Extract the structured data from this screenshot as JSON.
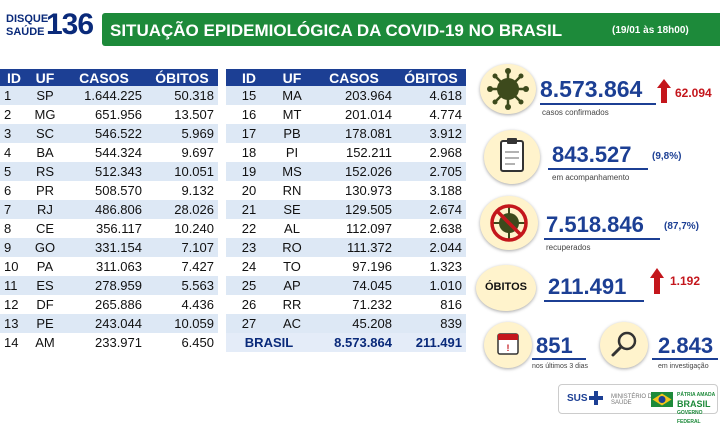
{
  "header": {
    "logo_line1": "DISQUE",
    "logo_line2": "SAÚDE",
    "logo_number": "136",
    "title": "SITUAÇÃO EPIDEMIOLÓGICA DA COVID-19 NO BRASIL",
    "date": "(19/01 às 18h00)"
  },
  "table": {
    "columns": [
      "ID",
      "UF",
      "CASOS",
      "ÓBITOS"
    ],
    "left_rows": [
      {
        "id": "1",
        "uf": "SP",
        "casos": "1.644.225",
        "obitos": "50.318"
      },
      {
        "id": "2",
        "uf": "MG",
        "casos": "651.956",
        "obitos": "13.507"
      },
      {
        "id": "3",
        "uf": "SC",
        "casos": "546.522",
        "obitos": "5.969"
      },
      {
        "id": "4",
        "uf": "BA",
        "casos": "544.324",
        "obitos": "9.697"
      },
      {
        "id": "5",
        "uf": "RS",
        "casos": "512.343",
        "obitos": "10.051"
      },
      {
        "id": "6",
        "uf": "PR",
        "casos": "508.570",
        "obitos": "9.132"
      },
      {
        "id": "7",
        "uf": "RJ",
        "casos": "486.806",
        "obitos": "28.026"
      },
      {
        "id": "8",
        "uf": "CE",
        "casos": "356.117",
        "obitos": "10.240"
      },
      {
        "id": "9",
        "uf": "GO",
        "casos": "331.154",
        "obitos": "7.107"
      },
      {
        "id": "10",
        "uf": "PA",
        "casos": "311.063",
        "obitos": "7.427"
      },
      {
        "id": "11",
        "uf": "ES",
        "casos": "278.959",
        "obitos": "5.563"
      },
      {
        "id": "12",
        "uf": "DF",
        "casos": "265.886",
        "obitos": "4.436"
      },
      {
        "id": "13",
        "uf": "PE",
        "casos": "243.044",
        "obitos": "10.059"
      },
      {
        "id": "14",
        "uf": "AM",
        "casos": "233.971",
        "obitos": "6.450"
      }
    ],
    "right_rows": [
      {
        "id": "15",
        "uf": "MA",
        "casos": "203.964",
        "obitos": "4.618"
      },
      {
        "id": "16",
        "uf": "MT",
        "casos": "201.014",
        "obitos": "4.774"
      },
      {
        "id": "17",
        "uf": "PB",
        "casos": "178.081",
        "obitos": "3.912"
      },
      {
        "id": "18",
        "uf": "PI",
        "casos": "152.211",
        "obitos": "2.968"
      },
      {
        "id": "19",
        "uf": "MS",
        "casos": "152.026",
        "obitos": "2.705"
      },
      {
        "id": "20",
        "uf": "RN",
        "casos": "130.973",
        "obitos": "3.188"
      },
      {
        "id": "21",
        "uf": "SE",
        "casos": "129.505",
        "obitos": "2.674"
      },
      {
        "id": "22",
        "uf": "AL",
        "casos": "112.097",
        "obitos": "2.638"
      },
      {
        "id": "23",
        "uf": "RO",
        "casos": "111.372",
        "obitos": "2.044"
      },
      {
        "id": "24",
        "uf": "TO",
        "casos": "97.196",
        "obitos": "1.323"
      },
      {
        "id": "25",
        "uf": "AP",
        "casos": "74.045",
        "obitos": "1.010"
      },
      {
        "id": "26",
        "uf": "RR",
        "casos": "71.232",
        "obitos": "816"
      },
      {
        "id": "27",
        "uf": "AC",
        "casos": "45.208",
        "obitos": "839"
      }
    ],
    "total": {
      "label": "BRASIL",
      "casos": "8.573.864",
      "obitos": "211.491"
    }
  },
  "stats": {
    "confirmed": {
      "value": "8.573.864",
      "increase": "62.094",
      "label": "casos confirmados",
      "icon": "virus-icon"
    },
    "monitoring": {
      "value": "843.527",
      "percent": "(9,8%)",
      "label": "em acompanhamento",
      "icon": "clipboard-icon"
    },
    "recovered": {
      "value": "7.518.846",
      "percent": "(87,7%)",
      "label": "recuperados",
      "icon": "crossed-virus-icon"
    },
    "deaths": {
      "badge": "ÓBITOS",
      "value": "211.491",
      "increase": "1.192"
    },
    "recent_deaths": {
      "value": "851",
      "label": "nos últimos 3 dias",
      "icon": "calendar-icon"
    },
    "investigating": {
      "value": "2.843",
      "label": "em investigação",
      "icon": "magnifier-icon"
    }
  },
  "footer": {
    "sus": "SUS",
    "ministry_line1": "MINISTÉRIO DA",
    "ministry_line2": "SAÚDE",
    "brasil_motto": "PÁTRIA AMADA",
    "brasil": "BRASIL",
    "brasil_sub": "GOVERNO FEDERAL"
  },
  "colors": {
    "header_green": "#1d8a3a",
    "table_blue": "#1c3f94",
    "row_stripe": "#dde8f5",
    "alert_red": "#c4161c",
    "icon_bg": "#fff3cc"
  }
}
